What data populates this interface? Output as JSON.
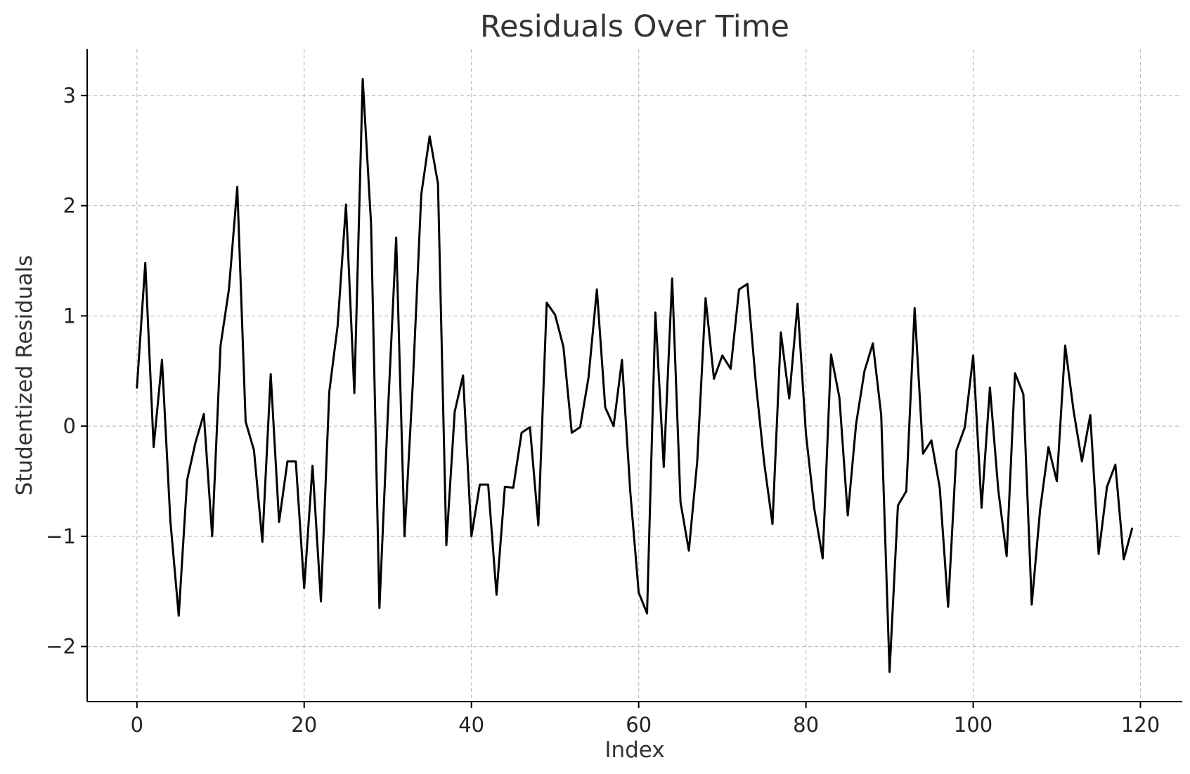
{
  "chart_data": {
    "type": "line",
    "title": "Residuals Over Time",
    "xlabel": "Index",
    "ylabel": "Studentized Residuals",
    "xlim": [
      -5.95,
      125
    ],
    "ylim": [
      -2.5,
      3.42
    ],
    "x_ticks": [
      0,
      20,
      40,
      60,
      80,
      100,
      120
    ],
    "x_tick_labels": [
      "0",
      "20",
      "40",
      "60",
      "80",
      "100",
      "120"
    ],
    "y_ticks": [
      -2,
      -1,
      0,
      1,
      2,
      3
    ],
    "y_tick_labels": [
      "−2",
      "−1",
      "0",
      "1",
      "2",
      "3"
    ],
    "grid": true,
    "line_color": "#000000",
    "series": [
      {
        "x_start": 0,
        "x_step": 1,
        "values": [
          0.35,
          1.48,
          -0.19,
          0.6,
          -0.86,
          -1.72,
          -0.49,
          -0.15,
          0.11,
          -1.0,
          0.73,
          1.24,
          2.17,
          0.04,
          -0.22,
          -1.05,
          0.47,
          -0.87,
          -0.32,
          -0.32,
          -1.47,
          -0.36,
          -1.59,
          0.31,
          0.91,
          2.01,
          0.3,
          3.15,
          1.83,
          -1.65,
          0.1,
          1.71,
          -1.0,
          0.4,
          2.1,
          2.63,
          2.2,
          -1.08,
          0.13,
          0.46,
          -1.0,
          -0.53,
          -0.53,
          -1.53,
          -0.55,
          -0.56,
          -0.06,
          -0.01,
          -0.9,
          1.12,
          1.01,
          0.72,
          -0.06,
          -0.01,
          0.44,
          1.24,
          0.17,
          0.0,
          0.6,
          -0.6,
          -1.51,
          -1.7,
          1.03,
          -0.37,
          1.34,
          -0.69,
          -1.13,
          -0.32,
          1.16,
          0.43,
          0.64,
          0.52,
          1.24,
          1.29,
          0.4,
          -0.33,
          -0.89,
          0.85,
          0.25,
          1.11,
          -0.07,
          -0.75,
          -1.2,
          0.65,
          0.26,
          -0.81,
          0.02,
          0.5,
          0.75,
          0.1,
          -2.23,
          -0.72,
          -0.59,
          1.07,
          -0.25,
          -0.13,
          -0.56,
          -1.64,
          -0.22,
          -0.01,
          0.64,
          -0.74,
          0.35,
          -0.58,
          -1.18,
          0.48,
          0.29,
          -1.62,
          -0.76,
          -0.19,
          -0.5,
          0.73,
          0.14,
          -0.32,
          0.1,
          -1.16,
          -0.55,
          -0.35,
          -1.21,
          -0.93
        ]
      }
    ]
  }
}
